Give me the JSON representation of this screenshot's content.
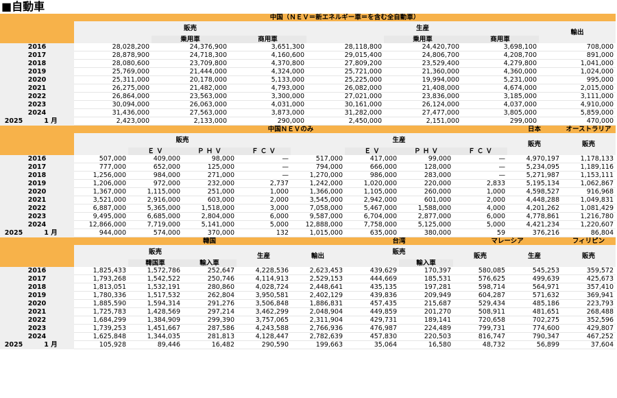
{
  "title": "■自動車",
  "t1": {
    "heading": "中国（ＮＥＶ＝新エネルギー車＝を含む全自動車）",
    "sales": "販売",
    "prod": "生産",
    "export": "輸出",
    "passenger": "乗用車",
    "commercial": "商用車",
    "rows": [
      {
        "y": "2016",
        "v": [
          "28,028,200",
          "24,376,900",
          "3,651,300",
          "28,118,800",
          "24,420,700",
          "3,698,100",
          "708,000"
        ]
      },
      {
        "y": "2017",
        "v": [
          "28,878,900",
          "24,718,300",
          "4,160,600",
          "29,015,400",
          "24,806,700",
          "4,208,700",
          "891,000"
        ]
      },
      {
        "y": "2018",
        "v": [
          "28,080,600",
          "23,709,800",
          "4,370,800",
          "27,809,200",
          "23,529,400",
          "4,279,800",
          "1,041,000"
        ]
      },
      {
        "y": "2019",
        "v": [
          "25,769,000",
          "21,444,000",
          "4,324,000",
          "25,721,000",
          "21,360,000",
          "4,360,000",
          "1,024,000"
        ]
      },
      {
        "y": "2020",
        "v": [
          "25,311,000",
          "20,178,000",
          "5,133,000",
          "25,225,000",
          "19,994,000",
          "5,231,000",
          "995,000"
        ]
      },
      {
        "y": "2021",
        "v": [
          "26,275,000",
          "21,482,000",
          "4,793,000",
          "26,082,000",
          "21,408,000",
          "4,674,000",
          "2,015,000"
        ]
      },
      {
        "y": "2022",
        "v": [
          "26,864,000",
          "23,563,000",
          "3,300,000",
          "27,021,000",
          "23,836,000",
          "3,185,000",
          "3,111,000"
        ]
      },
      {
        "y": "2023",
        "v": [
          "30,094,000",
          "26,063,000",
          "4,031,000",
          "30,161,000",
          "26,124,000",
          "4,037,000",
          "4,910,000"
        ]
      },
      {
        "y": "2024",
        "v": [
          "31,436,000",
          "27,563,000",
          "3,873,000",
          "31,282,000",
          "27,477,000",
          "3,805,000",
          "5,859,000"
        ]
      }
    ],
    "last": {
      "y": "2025",
      "m": "1 月",
      "v": [
        "2,423,000",
        "2,133,000",
        "290,000",
        "2,450,000",
        "2,151,000",
        "299,000",
        "470,000"
      ]
    }
  },
  "t2": {
    "heading": "中国ＮＥＶのみ",
    "japan": "日本",
    "australia": "オーストラリア",
    "sales": "販売",
    "prod": "生産",
    "ev": "Ｅ Ｖ",
    "phv": "Ｐ Ｈ Ｖ",
    "fcv": "Ｆ Ｃ Ｖ",
    "jp_sales": "販売",
    "au_sales": "販売",
    "rows": [
      {
        "y": "2016",
        "v": [
          "507,000",
          "409,000",
          "98,000",
          "—",
          "517,000",
          "417,000",
          "99,000",
          "—",
          "4,970,197",
          "1,178,133"
        ]
      },
      {
        "y": "2017",
        "v": [
          "777,000",
          "652,000",
          "125,000",
          "—",
          "794,000",
          "666,000",
          "128,000",
          "—",
          "5,234,095",
          "1,189,116"
        ]
      },
      {
        "y": "2018",
        "v": [
          "1,256,000",
          "984,000",
          "271,000",
          "—",
          "1,270,000",
          "986,000",
          "283,000",
          "—",
          "5,271,987",
          "1,153,111"
        ]
      },
      {
        "y": "2019",
        "v": [
          "1,206,000",
          "972,000",
          "232,000",
          "2,737",
          "1,242,000",
          "1,020,000",
          "220,000",
          "2,833",
          "5,195,134",
          "1,062,867"
        ]
      },
      {
        "y": "2020",
        "v": [
          "1,367,000",
          "1,115,000",
          "251,000",
          "1,000",
          "1,366,000",
          "1,105,000",
          "260,000",
          "1,000",
          "4,598,527",
          "916,968"
        ]
      },
      {
        "y": "2021",
        "v": [
          "3,521,000",
          "2,916,000",
          "603,000",
          "2,000",
          "3,545,000",
          "2,942,000",
          "601,000",
          "2,000",
          "4,448,288",
          "1,049,831"
        ]
      },
      {
        "y": "2022",
        "v": [
          "6,887,000",
          "5,365,000",
          "1,518,000",
          "3,000",
          "7,058,000",
          "5,467,000",
          "1,588,000",
          "4,000",
          "4,201,262",
          "1,081,429"
        ]
      },
      {
        "y": "2023",
        "v": [
          "9,495,000",
          "6,685,000",
          "2,804,000",
          "6,000",
          "9,587,000",
          "6,704,000",
          "2,877,000",
          "6,000",
          "4,778,861",
          "1,216,780"
        ]
      },
      {
        "y": "2024",
        "v": [
          "12,866,000",
          "7,719,000",
          "5,141,000",
          "5,000",
          "12,888,000",
          "7,758,000",
          "5,125,000",
          "5,000",
          "4,421,234",
          "1,220,607"
        ]
      }
    ],
    "last": {
      "y": "2025",
      "m": "1 月",
      "v": [
        "944,000",
        "574,000",
        "370,000",
        "132",
        "1,015,000",
        "635,000",
        "380,000",
        "59",
        "376,216",
        "86,804"
      ]
    }
  },
  "t3": {
    "korea": "韓国",
    "taiwan": "台湾",
    "malaysia": "マレーシア",
    "philippines": "フィリピン",
    "sales": "販売",
    "korean_cars": "韓国車",
    "imports": "輸入車",
    "prod": "生産",
    "export": "輸出",
    "tw_sales": "販売",
    "tw_imports": "輸入車",
    "my_sales": "販売",
    "my_prod": "生産",
    "ph_sales": "販売",
    "rows": [
      {
        "y": "2016",
        "v": [
          "1,825,433",
          "1,572,786",
          "252,647",
          "4,228,536",
          "2,623,453",
          "439,629",
          "170,397",
          "580,085",
          "545,253",
          "359,572"
        ]
      },
      {
        "y": "2017",
        "v": [
          "1,793,268",
          "1,542,522",
          "250,746",
          "4,114,913",
          "2,529,153",
          "444,669",
          "185,531",
          "576,625",
          "499,639",
          "425,673"
        ]
      },
      {
        "y": "2018",
        "v": [
          "1,813,051",
          "1,532,191",
          "280,860",
          "4,028,724",
          "2,448,641",
          "435,135",
          "197,281",
          "598,714",
          "564,971",
          "357,410"
        ]
      },
      {
        "y": "2019",
        "v": [
          "1,780,336",
          "1,517,532",
          "262,804",
          "3,950,581",
          "2,402,129",
          "439,836",
          "209,949",
          "604,287",
          "571,632",
          "369,941"
        ]
      },
      {
        "y": "2020",
        "v": [
          "1,885,590",
          "1,594,314",
          "291,276",
          "3,506,848",
          "1,886,831",
          "457,435",
          "215,687",
          "529,434",
          "485,186",
          "223,793"
        ]
      },
      {
        "y": "2021",
        "v": [
          "1,725,783",
          "1,428,569",
          "297,214",
          "3,462,299",
          "2,048,904",
          "449,859",
          "201,270",
          "508,911",
          "481,651",
          "268,488"
        ]
      },
      {
        "y": "2022",
        "v": [
          "1,684,299",
          "1,384,909",
          "299,390",
          "3,757,065",
          "2,311,904",
          "429,731",
          "189,141",
          "720,658",
          "702,275",
          "352,596"
        ]
      },
      {
        "y": "2023",
        "v": [
          "1,739,253",
          "1,451,667",
          "287,586",
          "4,243,588",
          "2,766,936",
          "476,987",
          "224,489",
          "799,731",
          "774,600",
          "429,807"
        ]
      },
      {
        "y": "2024",
        "v": [
          "1,625,848",
          "1,344,035",
          "281,813",
          "4,128,447",
          "2,782,639",
          "457,830",
          "220,503",
          "816,747",
          "790,347",
          "467,252"
        ]
      }
    ],
    "last": {
      "y": "2025",
      "m": "1 月",
      "v": [
        "105,928",
        "89,446",
        "16,482",
        "290,590",
        "199,663",
        "35,064",
        "16,580",
        "48,732",
        "56,899",
        "37,604"
      ]
    }
  }
}
